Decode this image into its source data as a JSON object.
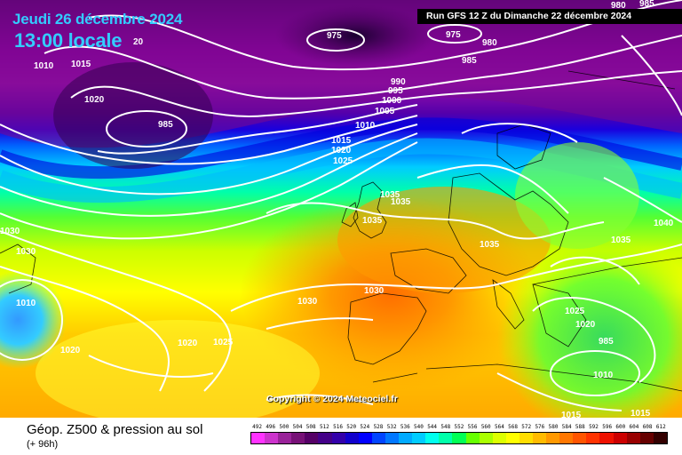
{
  "header": {
    "date": "Jeudi 26 décembre 2024",
    "time": "13:00 locale",
    "run": "Run GFS 12 Z du Dimanche 22 décembre 2024"
  },
  "copyright": "Copyright © 2024 Meteociel.fr",
  "footer": {
    "title": "Géop. Z500 & pression au sol",
    "subtitle": "(+ 96h)"
  },
  "legend": {
    "labels": [
      "492",
      "496",
      "500",
      "504",
      "508",
      "512",
      "516",
      "520",
      "524",
      "528",
      "532",
      "536",
      "540",
      "544",
      "548",
      "552",
      "556",
      "560",
      "564",
      "568",
      "572",
      "576",
      "580",
      "584",
      "588",
      "592",
      "596",
      "600",
      "604",
      "608",
      "612"
    ],
    "colors": [
      "#ff33ff",
      "#cc33cc",
      "#992299",
      "#771177",
      "#550066",
      "#440088",
      "#3300aa",
      "#1100cc",
      "#0000ff",
      "#0044ff",
      "#0077ff",
      "#00aaff",
      "#00ccff",
      "#00ffee",
      "#00ffaa",
      "#00ff55",
      "#66ff00",
      "#aaff00",
      "#ddff00",
      "#ffff00",
      "#ffdd00",
      "#ffbb00",
      "#ff9900",
      "#ff7700",
      "#ff5500",
      "#ff3300",
      "#ee1100",
      "#cc0000",
      "#990000",
      "#660000",
      "#330000"
    ]
  },
  "isobars": [
    "975",
    "975",
    "980",
    "980",
    "985",
    "985",
    "985",
    "990",
    "995",
    "1000",
    "1005",
    "1010",
    "1010",
    "1010",
    "1010",
    "1015",
    "1015",
    "1015",
    "1015",
    "1020",
    "1020",
    "1020",
    "1020",
    "1020",
    "1025",
    "1025",
    "1025",
    "1030",
    "1030",
    "1030",
    "1030",
    "1035",
    "1035",
    "1035",
    "1035",
    "1035",
    "1040",
    "20",
    "985"
  ]
}
